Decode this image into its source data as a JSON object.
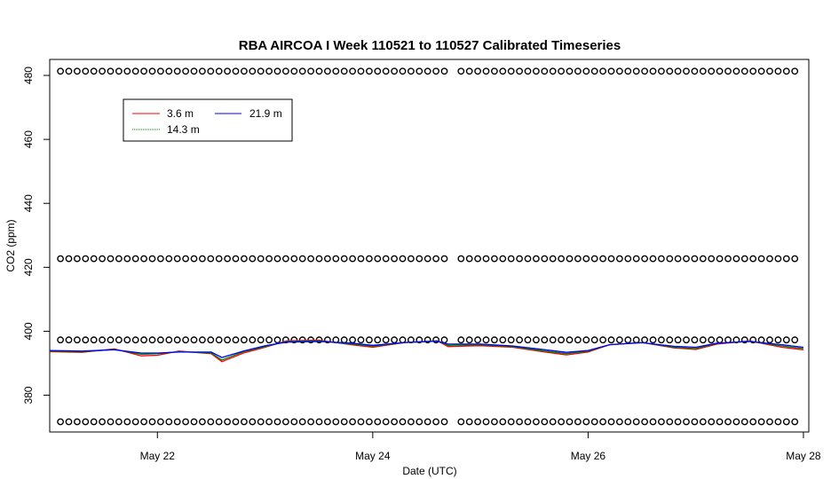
{
  "chart_data": {
    "type": "line",
    "title": "RBA AIRCOA I  Week 110521 to 110527  Calibrated Timeseries",
    "xlabel": "Date (UTC)",
    "ylabel": "CO2 (ppm)",
    "xlim": [
      21.0,
      28.05
    ],
    "ylim": [
      368.5,
      485
    ],
    "x_ticks": [
      {
        "value": 22,
        "label": "May 22"
      },
      {
        "value": 24,
        "label": "May 24"
      },
      {
        "value": 26,
        "label": "May 26"
      },
      {
        "value": 28,
        "label": "May 28"
      }
    ],
    "y_ticks": [
      380,
      400,
      420,
      440,
      460,
      480
    ],
    "legend_position": "top-left",
    "grid": false,
    "series": [
      {
        "name": "3.6 m",
        "color": "#ff0000",
        "x": [
          21.0,
          21.3,
          21.6,
          21.85,
          22.0,
          22.2,
          22.5,
          22.6,
          22.8,
          23.0,
          23.2,
          23.5,
          23.8,
          24.0,
          24.3,
          24.6,
          24.7,
          25.0,
          25.3,
          25.6,
          25.8,
          26.0,
          26.2,
          26.5,
          26.8,
          27.0,
          27.2,
          27.5,
          27.8,
          28.0
        ],
        "y": [
          393.6,
          393.4,
          394.5,
          392.3,
          392.5,
          393.8,
          393.0,
          390.5,
          393.2,
          395.0,
          397.0,
          397.2,
          395.8,
          395.0,
          396.5,
          397.0,
          395.2,
          395.5,
          395.0,
          393.5,
          392.6,
          393.5,
          395.8,
          396.5,
          394.8,
          394.3,
          396.0,
          397.0,
          395.0,
          394.2
        ]
      },
      {
        "name": "14.3 m",
        "color": "#008000",
        "x": [
          21.0,
          21.3,
          21.6,
          21.85,
          22.0,
          22.2,
          22.5,
          22.6,
          22.8,
          23.0,
          23.2,
          23.5,
          23.8,
          24.0,
          24.3,
          24.6,
          24.7,
          25.0,
          25.3,
          25.6,
          25.8,
          26.0,
          26.2,
          26.5,
          26.8,
          27.0,
          27.2,
          27.5,
          27.8,
          28.0
        ],
        "y": [
          393.8,
          393.6,
          394.3,
          392.8,
          393.0,
          393.6,
          393.2,
          391.0,
          393.6,
          395.2,
          396.8,
          397.0,
          396.0,
          395.3,
          396.5,
          397.0,
          395.6,
          395.8,
          395.2,
          393.8,
          393.0,
          393.8,
          395.8,
          396.5,
          395.0,
          394.6,
          396.2,
          396.9,
          395.4,
          394.6
        ]
      },
      {
        "name": "21.9 m",
        "color": "#0000ff",
        "x": [
          21.0,
          21.3,
          21.6,
          21.85,
          22.0,
          22.2,
          22.5,
          22.6,
          22.8,
          23.0,
          23.2,
          23.5,
          23.8,
          24.0,
          24.3,
          24.6,
          24.7,
          25.0,
          25.3,
          25.6,
          25.8,
          26.0,
          26.2,
          26.5,
          26.8,
          27.0,
          27.2,
          27.5,
          27.8,
          28.0
        ],
        "y": [
          394.0,
          393.8,
          394.2,
          393.2,
          393.2,
          393.5,
          393.5,
          391.8,
          393.8,
          395.5,
          396.6,
          396.8,
          396.3,
          395.6,
          396.5,
          396.9,
          396.0,
          396.0,
          395.4,
          394.2,
          393.4,
          394.0,
          395.8,
          396.4,
          395.3,
          395.0,
          396.3,
          396.8,
          395.8,
          395.0
        ]
      }
    ],
    "calibration_points": {
      "marker": "open-circle",
      "color": "#000000",
      "levels": [
        481.3,
        422.7,
        397.3,
        371.7
      ],
      "start": 21.1,
      "step": 0.0775,
      "gap": [
        24.72,
        24.82
      ],
      "end": 27.99
    }
  }
}
